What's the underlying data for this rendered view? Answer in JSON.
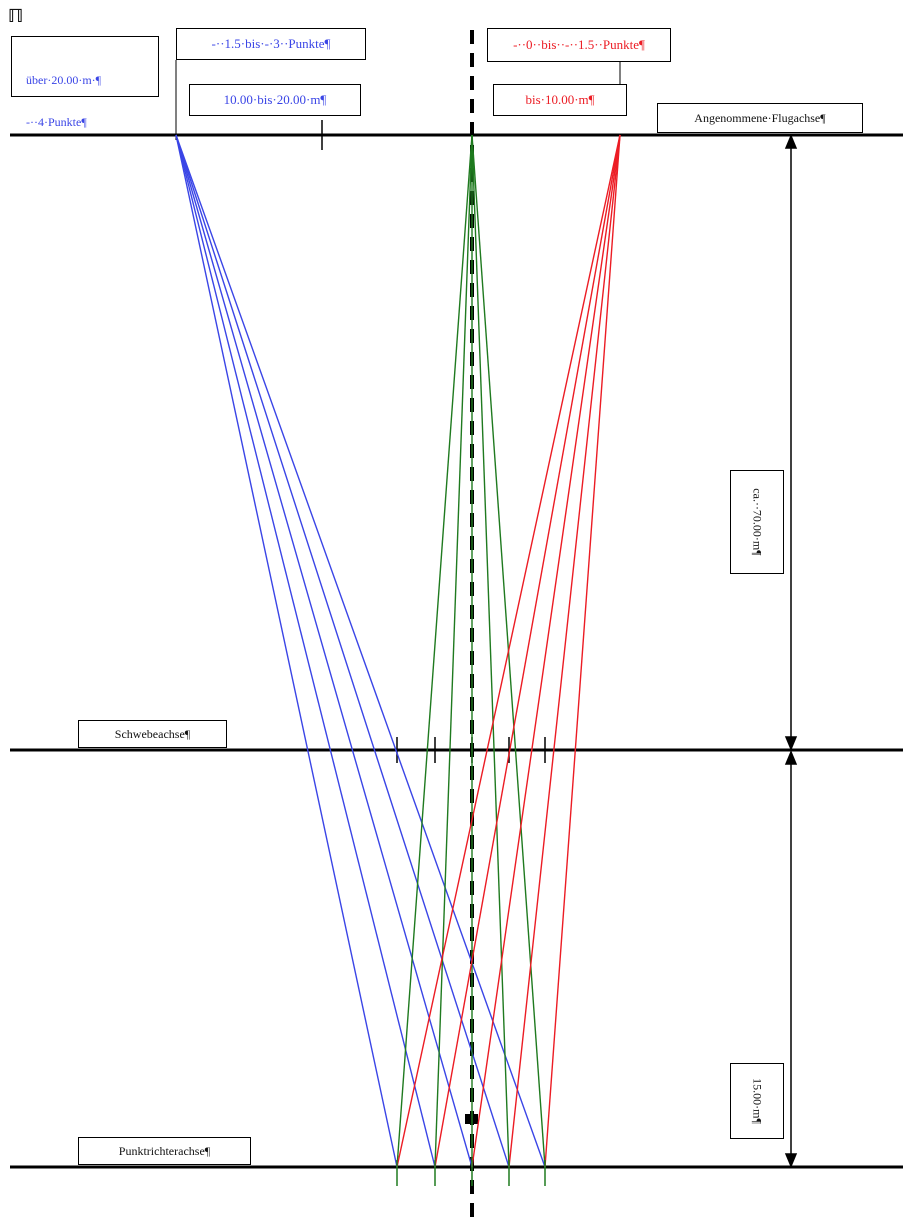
{
  "corner_mark": "ℿ",
  "labels": {
    "over20_line1": "über·20.00·m·¶",
    "over20_line2": "-··4·Punkte¶",
    "points_1_5_to_3": "-··1.5·bis·-·3··Punkte¶",
    "range_10_to_20": "10.00·bis·20.00·m¶",
    "points_0_to_1_5": "-··0··bis··-··1.5··Punkte¶",
    "range_to_10": "bis·10.00·m¶",
    "flight_axis": "Angenommene·Flugachse¶",
    "hover_axis": "Schwebeachse¶",
    "point_funnel_axis": "Punktrichterachse¶",
    "dim_70": "ca.··70.00·m¶",
    "dim_15": "15.00·m¶"
  },
  "colors": {
    "blue": "#3a45e6",
    "green": "#1f7a1f",
    "red": "#ec1c24",
    "black": "#000000"
  }
}
